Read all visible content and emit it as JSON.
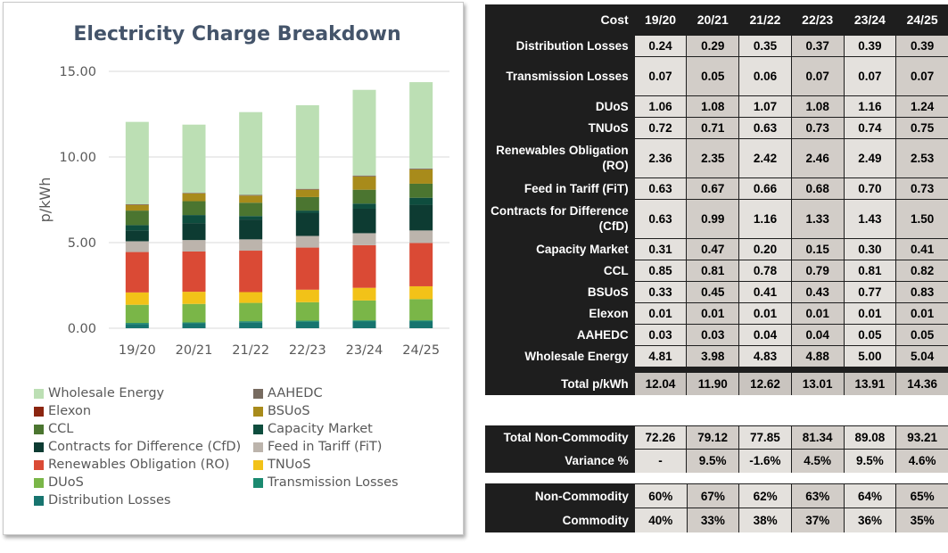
{
  "chart_data": {
    "type": "bar",
    "stacked": true,
    "title": "Electricity Charge Breakdown",
    "xlabel": "",
    "ylabel": "p/kWh",
    "ylim": [
      0,
      15
    ],
    "yticks": [
      "0.00",
      "5.00",
      "10.00",
      "15.00"
    ],
    "categories": [
      "19/20",
      "20/21",
      "21/22",
      "22/23",
      "23/24",
      "24/25"
    ],
    "legend_position": "bottom",
    "grid": true,
    "series": [
      {
        "name": "Distribution Losses",
        "color": "#17746f",
        "values": [
          0.24,
          0.29,
          0.35,
          0.37,
          0.39,
          0.39
        ]
      },
      {
        "name": "Transmission Losses",
        "color": "#1b8a70",
        "values": [
          0.07,
          0.05,
          0.06,
          0.07,
          0.07,
          0.07
        ]
      },
      {
        "name": "DUoS",
        "color": "#7ab648",
        "values": [
          1.06,
          1.08,
          1.07,
          1.08,
          1.16,
          1.24
        ]
      },
      {
        "name": "TNUoS",
        "color": "#f2c218",
        "values": [
          0.72,
          0.71,
          0.63,
          0.73,
          0.74,
          0.75
        ]
      },
      {
        "name": "Renewables Obligation (RO)",
        "color": "#da4a35",
        "values": [
          2.36,
          2.35,
          2.42,
          2.46,
          2.49,
          2.53
        ]
      },
      {
        "name": "Feed in Tariff (FiT)",
        "color": "#bcb4ac",
        "values": [
          0.63,
          0.67,
          0.66,
          0.68,
          0.7,
          0.73
        ]
      },
      {
        "name": "Contracts for Difference (CfD)",
        "color": "#0d3b32",
        "values": [
          0.63,
          0.99,
          1.16,
          1.33,
          1.43,
          1.5
        ]
      },
      {
        "name": "Capacity Market",
        "color": "#0e4d3e",
        "values": [
          0.31,
          0.47,
          0.2,
          0.15,
          0.3,
          0.41
        ]
      },
      {
        "name": "CCL",
        "color": "#4b7530",
        "values": [
          0.85,
          0.81,
          0.78,
          0.79,
          0.81,
          0.82
        ]
      },
      {
        "name": "BSUoS",
        "color": "#a88b1b",
        "values": [
          0.33,
          0.45,
          0.41,
          0.43,
          0.77,
          0.83
        ]
      },
      {
        "name": "Elexon",
        "color": "#8b2510",
        "values": [
          0.01,
          0.01,
          0.01,
          0.01,
          0.01,
          0.01
        ]
      },
      {
        "name": "AAHEDC",
        "color": "#776b60",
        "values": [
          0.03,
          0.03,
          0.04,
          0.04,
          0.05,
          0.05
        ]
      },
      {
        "name": "Wholesale Energy",
        "color": "#bcdfb4",
        "values": [
          4.81,
          3.98,
          4.83,
          4.88,
          5.0,
          5.04
        ]
      }
    ],
    "legend_order": [
      "Wholesale Energy",
      "AAHEDC",
      "Elexon",
      "BSUoS",
      "CCL",
      "Capacity Market",
      "Contracts for Difference (CfD)",
      "Feed in Tariff (FiT)",
      "Renewables Obligation (RO)",
      "TNUoS",
      "DUoS",
      "Transmission Losses",
      "Distribution Losses"
    ]
  },
  "colors": {
    "title": "#44546a",
    "axis_text": "#595959",
    "gridline": "#d9d9d9",
    "table_dark": "#1e1e1e",
    "cell_light": "#e4e1dd",
    "cell_mid": "#d2cdc8"
  },
  "cost_table": {
    "header": [
      "Cost",
      "19/20",
      "20/21",
      "21/22",
      "22/23",
      "23/24",
      "24/25"
    ],
    "rows": [
      {
        "label": "Distribution Losses",
        "values": [
          "0.24",
          "0.29",
          "0.35",
          "0.37",
          "0.39",
          "0.39"
        ]
      },
      {
        "label": "Transmission Losses",
        "values": [
          "0.07",
          "0.05",
          "0.06",
          "0.07",
          "0.07",
          "0.07"
        ]
      },
      {
        "label": "DUoS",
        "values": [
          "1.06",
          "1.08",
          "1.07",
          "1.08",
          "1.16",
          "1.24"
        ]
      },
      {
        "label": "TNUoS",
        "values": [
          "0.72",
          "0.71",
          "0.63",
          "0.73",
          "0.74",
          "0.75"
        ]
      },
      {
        "label": "Renewables Obligation (RO)",
        "values": [
          "2.36",
          "2.35",
          "2.42",
          "2.46",
          "2.49",
          "2.53"
        ]
      },
      {
        "label": "Feed in Tariff (FiT)",
        "values": [
          "0.63",
          "0.67",
          "0.66",
          "0.68",
          "0.70",
          "0.73"
        ]
      },
      {
        "label": "Contracts for Difference (CfD)",
        "values": [
          "0.63",
          "0.99",
          "1.16",
          "1.33",
          "1.43",
          "1.50"
        ]
      },
      {
        "label": "Capacity Market",
        "values": [
          "0.31",
          "0.47",
          "0.20",
          "0.15",
          "0.30",
          "0.41"
        ]
      },
      {
        "label": "CCL",
        "values": [
          "0.85",
          "0.81",
          "0.78",
          "0.79",
          "0.81",
          "0.82"
        ]
      },
      {
        "label": "BSUoS",
        "values": [
          "0.33",
          "0.45",
          "0.41",
          "0.43",
          "0.77",
          "0.83"
        ]
      },
      {
        "label": "Elexon",
        "values": [
          "0.01",
          "0.01",
          "0.01",
          "0.01",
          "0.01",
          "0.01"
        ]
      },
      {
        "label": "AAHEDC",
        "values": [
          "0.03",
          "0.03",
          "0.04",
          "0.04",
          "0.05",
          "0.05"
        ]
      },
      {
        "label": "Wholesale Energy",
        "values": [
          "4.81",
          "3.98",
          "4.83",
          "4.88",
          "5.00",
          "5.04"
        ]
      }
    ],
    "total": {
      "label": "Total p/kWh",
      "values": [
        "12.04",
        "11.90",
        "12.62",
        "13.01",
        "13.91",
        "14.36"
      ]
    }
  },
  "noncommodity_table": {
    "rows": [
      {
        "label": "Total Non-Commodity",
        "values": [
          "72.26",
          "79.12",
          "77.85",
          "81.34",
          "89.08",
          "93.21"
        ]
      },
      {
        "label": "Variance %",
        "values": [
          "-",
          "9.5%",
          "-1.6%",
          "4.5%",
          "9.5%",
          "4.6%"
        ]
      }
    ]
  },
  "split_table": {
    "rows": [
      {
        "label": "Non-Commodity",
        "values": [
          "60%",
          "67%",
          "62%",
          "63%",
          "64%",
          "65%"
        ]
      },
      {
        "label": "Commodity",
        "values": [
          "40%",
          "33%",
          "38%",
          "37%",
          "36%",
          "35%"
        ]
      }
    ]
  }
}
